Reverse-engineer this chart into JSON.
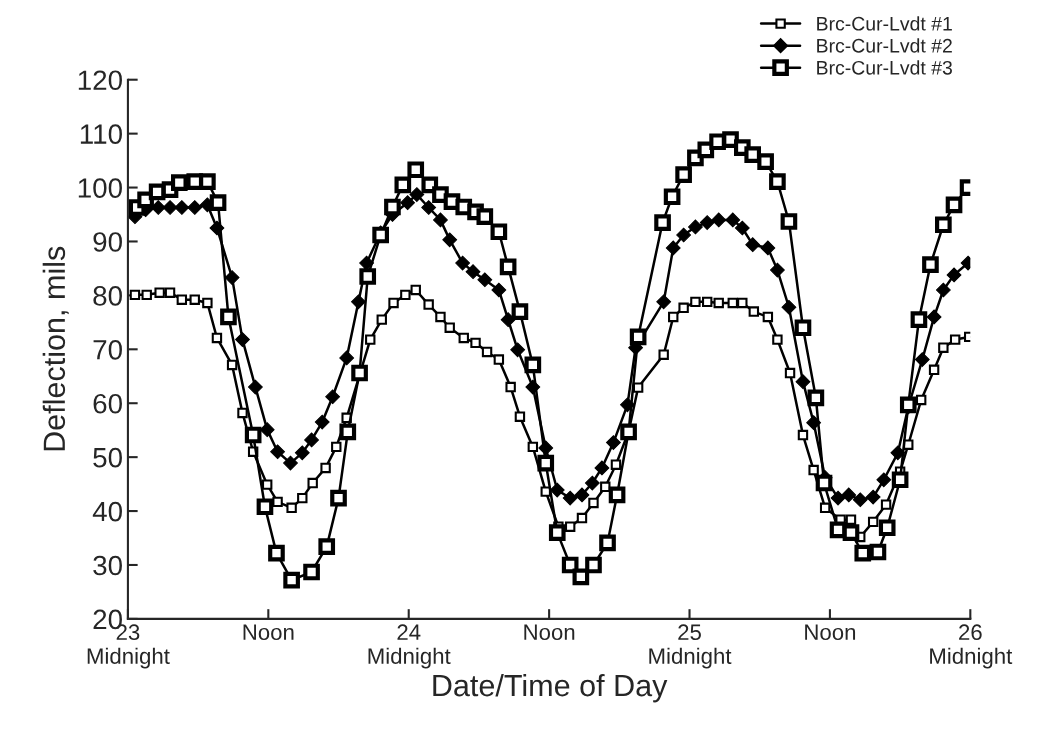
{
  "chart_data": {
    "type": "line",
    "xlabel": "Date/Time of Day",
    "ylabel": "Deflection, mils",
    "xlim": [
      23,
      26
    ],
    "ylim": [
      20,
      120
    ],
    "xticks": [
      {
        "value": 23,
        "label": "23\nMidnight"
      },
      {
        "value": 23.5,
        "label": "Noon"
      },
      {
        "value": 24,
        "label": "24\nMidnight"
      },
      {
        "value": 24.5,
        "label": "Noon"
      },
      {
        "value": 25,
        "label": "25\nMidnight"
      },
      {
        "value": 25.5,
        "label": "Noon"
      },
      {
        "value": 26,
        "label": "26\nMidnight"
      }
    ],
    "yticks": [
      20,
      30,
      40,
      50,
      60,
      70,
      80,
      90,
      100,
      110,
      120
    ],
    "grid": false,
    "legend": "top right",
    "line_style": "solid",
    "series": [
      {
        "name": "Brc-Cur-Lvdt #1",
        "color": "#000000",
        "marker": "square",
        "x": [
          23.025,
          23.067,
          23.113,
          23.15,
          23.192,
          23.238,
          23.283,
          23.317,
          23.371,
          23.408,
          23.446,
          23.496,
          23.533,
          23.583,
          23.621,
          23.658,
          23.704,
          23.742,
          23.779,
          23.863,
          23.904,
          23.946,
          23.988,
          24.025,
          24.071,
          24.113,
          24.146,
          24.196,
          24.238,
          24.279,
          24.321,
          24.363,
          24.396,
          24.442,
          24.488,
          24.533,
          24.575,
          24.617,
          24.658,
          24.7,
          24.738,
          24.783,
          24.817,
          24.908,
          24.942,
          24.979,
          25.021,
          25.063,
          25.104,
          25.154,
          25.188,
          25.229,
          25.279,
          25.313,
          25.358,
          25.404,
          25.442,
          25.483,
          25.538,
          25.575,
          25.608,
          25.654,
          25.7,
          25.75,
          25.779,
          25.825,
          25.871,
          25.904,
          25.946,
          25.996
        ],
        "values": [
          80.1,
          80.1,
          80.5,
          80.5,
          79.2,
          79.2,
          78.6,
          72.1,
          67.1,
          58.2,
          51.0,
          44.9,
          41.7,
          40.6,
          42.4,
          45.2,
          48.0,
          51.9,
          57.3,
          71.8,
          75.5,
          78.6,
          80.1,
          81.0,
          78.3,
          76.0,
          74.0,
          72.1,
          71.2,
          69.5,
          68.1,
          63.0,
          57.5,
          51.9,
          43.6,
          37.1,
          37.1,
          38.7,
          41.5,
          44.5,
          48.6,
          54.7,
          62.9,
          69.0,
          76.0,
          77.7,
          78.8,
          78.8,
          78.6,
          78.6,
          78.6,
          77.0,
          76.0,
          71.8,
          65.6,
          54.1,
          47.6,
          40.6,
          38.4,
          38.4,
          35.2,
          38.0,
          41.2,
          47.3,
          52.3,
          60.6,
          66.2,
          70.3,
          71.8,
          72.3
        ]
      },
      {
        "name": "Brc-Cur-Lvdt #2",
        "color": "#000000",
        "marker": "diamond",
        "x": [
          23.025,
          23.063,
          23.108,
          23.15,
          23.192,
          23.238,
          23.283,
          23.317,
          23.371,
          23.408,
          23.454,
          23.496,
          23.533,
          23.579,
          23.621,
          23.654,
          23.692,
          23.729,
          23.779,
          23.821,
          23.85,
          23.9,
          23.942,
          23.996,
          24.029,
          24.071,
          24.113,
          24.146,
          24.192,
          24.229,
          24.271,
          24.321,
          24.354,
          24.388,
          24.442,
          24.488,
          24.529,
          24.575,
          24.617,
          24.654,
          24.688,
          24.729,
          24.779,
          24.808,
          24.908,
          24.942,
          24.979,
          25.021,
          25.063,
          25.104,
          25.154,
          25.188,
          25.225,
          25.279,
          25.313,
          25.354,
          25.404,
          25.442,
          25.483,
          25.529,
          25.567,
          25.608,
          25.654,
          25.692,
          25.742,
          25.779,
          25.829,
          25.871,
          25.904,
          25.942,
          25.992
        ],
        "values": [
          94.6,
          95.9,
          96.3,
          96.3,
          96.3,
          96.3,
          96.8,
          92.5,
          83.3,
          71.8,
          63.0,
          55.1,
          51.0,
          48.9,
          50.8,
          53.2,
          56.5,
          61.2,
          68.4,
          78.8,
          86.0,
          91.6,
          95.0,
          97.2,
          98.7,
          96.3,
          94.0,
          90.3,
          86.0,
          84.4,
          82.9,
          81.0,
          75.5,
          69.9,
          63.0,
          51.7,
          43.9,
          42.4,
          43.0,
          45.2,
          48.0,
          52.7,
          59.7,
          70.3,
          78.8,
          88.8,
          91.2,
          92.7,
          93.5,
          94.0,
          94.0,
          92.5,
          89.4,
          88.8,
          84.7,
          77.8,
          64.0,
          56.4,
          46.2,
          42.4,
          43.0,
          42.1,
          42.6,
          45.8,
          50.8,
          59.3,
          68.1,
          76.0,
          81.0,
          83.8,
          86.0
        ]
      },
      {
        "name": "Brc-Cur-Lvdt #3",
        "color": "#000000",
        "marker": "square",
        "x": [
          23.033,
          23.063,
          23.104,
          23.15,
          23.183,
          23.238,
          23.283,
          23.321,
          23.358,
          23.446,
          23.488,
          23.529,
          23.583,
          23.654,
          23.708,
          23.75,
          23.783,
          23.825,
          23.854,
          23.9,
          23.942,
          23.979,
          24.025,
          24.075,
          24.113,
          24.154,
          24.196,
          24.238,
          24.271,
          24.321,
          24.354,
          24.396,
          24.442,
          24.488,
          24.529,
          24.575,
          24.613,
          24.658,
          24.708,
          24.742,
          24.783,
          24.817,
          24.904,
          24.938,
          24.979,
          25.021,
          25.058,
          25.1,
          25.146,
          25.188,
          25.225,
          25.271,
          25.313,
          25.354,
          25.404,
          25.45,
          25.479,
          25.529,
          25.575,
          25.617,
          25.671,
          25.704,
          25.75,
          25.779,
          25.817,
          25.858,
          25.904,
          25.942,
          25.992
        ],
        "values": [
          96.3,
          97.7,
          99.2,
          99.6,
          100.9,
          101.1,
          101.1,
          97.2,
          76.0,
          54.1,
          40.8,
          32.2,
          27.2,
          28.7,
          33.4,
          42.4,
          54.7,
          65.6,
          83.5,
          91.2,
          96.4,
          100.5,
          103.3,
          100.5,
          98.7,
          97.4,
          96.4,
          95.5,
          94.6,
          91.8,
          85.3,
          77.0,
          67.1,
          48.9,
          36.0,
          30.0,
          27.8,
          30.0,
          34.1,
          43.0,
          54.7,
          72.3,
          93.5,
          98.3,
          102.4,
          105.5,
          107.0,
          108.5,
          108.9,
          107.4,
          106.1,
          104.8,
          101.1,
          93.7,
          74.0,
          61.0,
          45.2,
          36.5,
          36.0,
          32.2,
          32.4,
          36.9,
          45.8,
          59.7,
          75.5,
          85.7,
          93.1,
          96.8,
          100.0
        ]
      }
    ]
  }
}
